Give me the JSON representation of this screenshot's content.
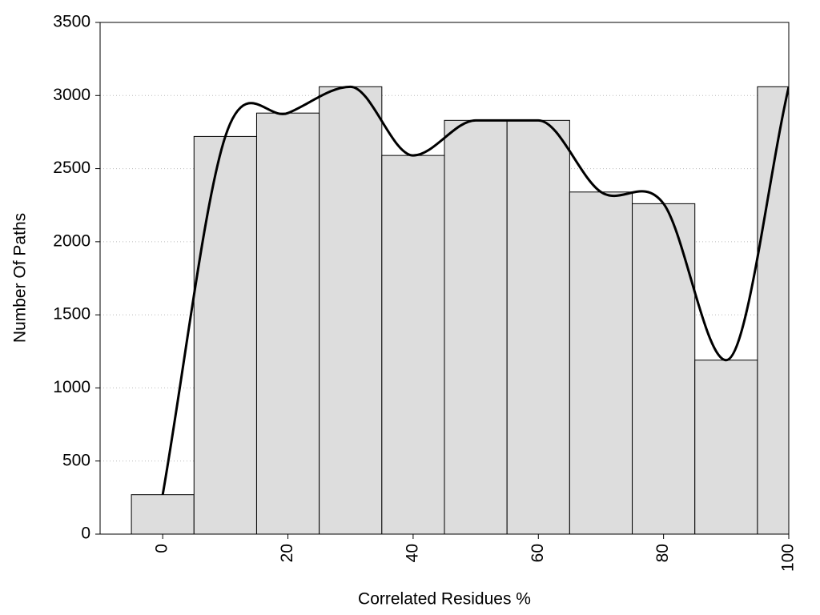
{
  "chart_data": {
    "type": "bar",
    "x_label": "Correlated Residues %",
    "y_label": "Number Of Paths",
    "x": [
      0,
      10,
      20,
      30,
      40,
      50,
      60,
      70,
      80,
      90,
      100
    ],
    "values": [
      270,
      2720,
      2880,
      3060,
      2590,
      2830,
      2830,
      2340,
      2260,
      1190,
      3060
    ],
    "color": "#dddddd",
    "line_color": "#000000",
    "smooth_line": true,
    "xlim": [
      -10,
      100
    ],
    "xticks": [
      0,
      20,
      40,
      60,
      80,
      100
    ],
    "ylim": [
      0,
      3500
    ],
    "yticks": [
      0,
      500,
      1000,
      1500,
      2000,
      2500,
      3000,
      3500
    ],
    "grid": true
  }
}
